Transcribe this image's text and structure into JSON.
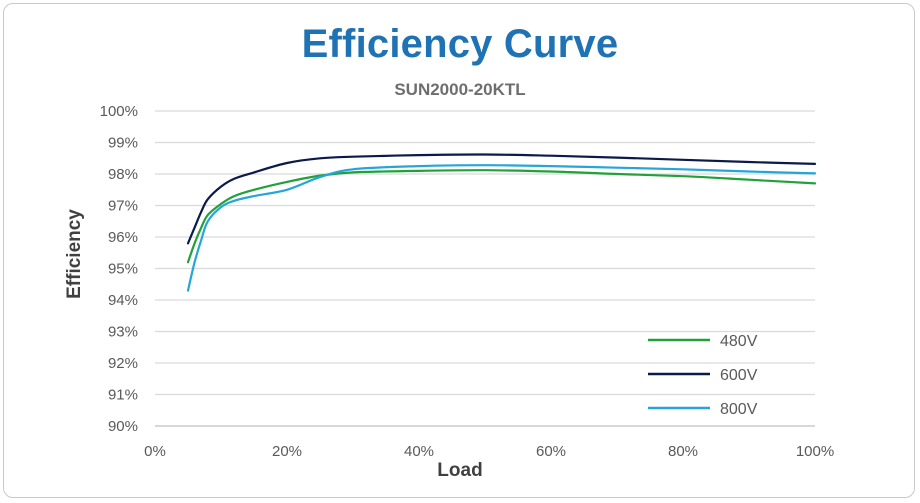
{
  "chart_data": {
    "type": "line",
    "title": "Efficiency Curve",
    "subtitle": "SUN2000-20KTL",
    "xlabel": "Load",
    "ylabel": "Efficiency",
    "xlim": [
      0,
      100
    ],
    "ylim": [
      90,
      100
    ],
    "x_ticks": [
      "0%",
      "20%",
      "40%",
      "60%",
      "80%",
      "100%"
    ],
    "y_ticks": [
      "90%",
      "91%",
      "92%",
      "93%",
      "94%",
      "95%",
      "96%",
      "97%",
      "98%",
      "99%",
      "100%"
    ],
    "grid": "horizontal",
    "legend_position": "bottom-right",
    "series": [
      {
        "name": "480V",
        "color": "#22a13a",
        "points": [
          [
            5,
            95.2
          ],
          [
            6,
            95.8
          ],
          [
            7,
            96.3
          ],
          [
            8,
            96.7
          ],
          [
            10,
            97.05
          ],
          [
            12,
            97.3
          ],
          [
            15,
            97.5
          ],
          [
            20,
            97.75
          ],
          [
            25,
            97.95
          ],
          [
            30,
            98.05
          ],
          [
            40,
            98.1
          ],
          [
            50,
            98.12
          ],
          [
            60,
            98.08
          ],
          [
            70,
            98.0
          ],
          [
            80,
            97.93
          ],
          [
            90,
            97.82
          ],
          [
            100,
            97.7
          ]
        ]
      },
      {
        "name": "600V",
        "color": "#0b1a4a",
        "points": [
          [
            5,
            95.8
          ],
          [
            6,
            96.3
          ],
          [
            7,
            96.8
          ],
          [
            8,
            97.2
          ],
          [
            10,
            97.6
          ],
          [
            12,
            97.85
          ],
          [
            15,
            98.05
          ],
          [
            20,
            98.35
          ],
          [
            25,
            98.5
          ],
          [
            30,
            98.55
          ],
          [
            40,
            98.6
          ],
          [
            50,
            98.62
          ],
          [
            60,
            98.58
          ],
          [
            70,
            98.52
          ],
          [
            80,
            98.45
          ],
          [
            90,
            98.38
          ],
          [
            100,
            98.32
          ]
        ]
      },
      {
        "name": "800V",
        "color": "#25a5d9",
        "points": [
          [
            5,
            94.3
          ],
          [
            6,
            95.2
          ],
          [
            7,
            95.9
          ],
          [
            8,
            96.5
          ],
          [
            10,
            96.95
          ],
          [
            12,
            97.15
          ],
          [
            15,
            97.3
          ],
          [
            20,
            97.5
          ],
          [
            25,
            97.9
          ],
          [
            30,
            98.15
          ],
          [
            40,
            98.25
          ],
          [
            50,
            98.28
          ],
          [
            60,
            98.25
          ],
          [
            70,
            98.2
          ],
          [
            80,
            98.15
          ],
          [
            90,
            98.08
          ],
          [
            100,
            98.02
          ]
        ]
      }
    ]
  }
}
